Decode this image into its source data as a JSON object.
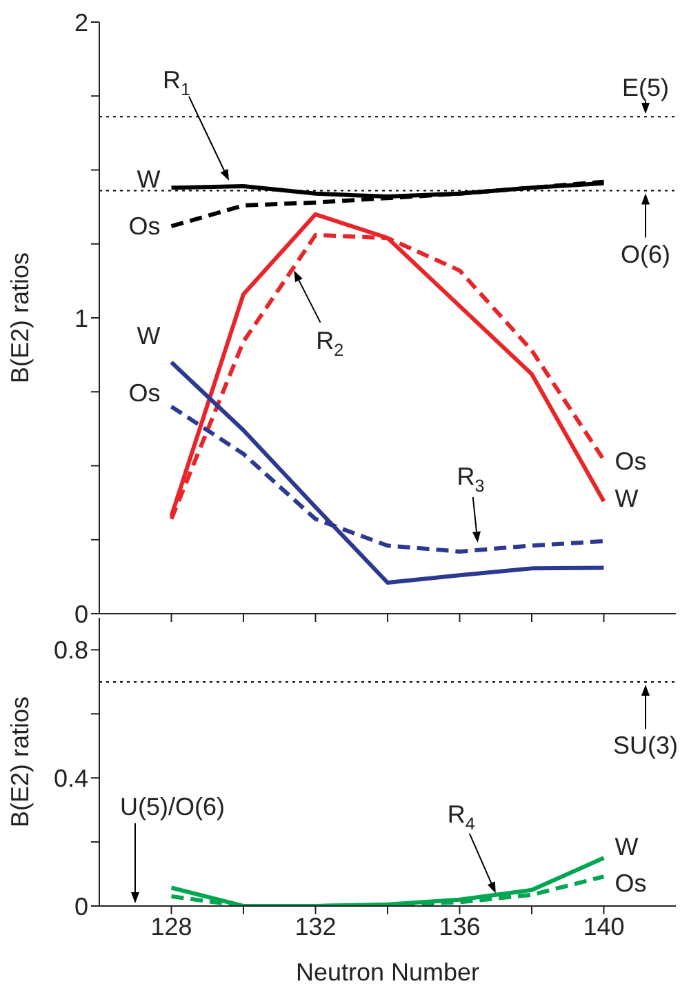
{
  "chart_data": [
    {
      "type": "line",
      "ylabel": "B(E2) ratios",
      "x": [
        128,
        130,
        132,
        134,
        136,
        138,
        140
      ],
      "xlim": [
        126,
        142
      ],
      "xticks": [
        128,
        130,
        132,
        134,
        136,
        138,
        140
      ],
      "ylim": [
        0,
        2
      ],
      "yticks": [
        0,
        {
          "value": 0.25,
          "label": null
        },
        {
          "value": 0.5,
          "label": null
        },
        {
          "value": 0.75,
          "label": null
        },
        1,
        {
          "value": 1.25,
          "label": null
        },
        {
          "value": 1.5,
          "label": null
        },
        {
          "value": 1.75,
          "label": null
        },
        2
      ],
      "tick_labels": "y",
      "series": [
        {
          "color": "#000000",
          "line_style": "solid",
          "values": [
            1.44,
            1.445,
            1.42,
            1.41,
            1.42,
            1.44,
            1.455
          ]
        },
        {
          "color": "#000000",
          "line_style": "dashed",
          "values": [
            1.31,
            1.38,
            1.39,
            1.405,
            1.42,
            1.44,
            1.46
          ]
        },
        {
          "color": "#e8262a",
          "line_style": "solid",
          "values": [
            0.33,
            1.08,
            1.35,
            1.27,
            1.04,
            0.81,
            0.38
          ]
        },
        {
          "color": "#e8262a",
          "line_style": "dashed",
          "values": [
            0.32,
            0.92,
            1.28,
            1.27,
            1.16,
            0.89,
            0.52
          ]
        },
        {
          "color": "#2b3990",
          "line_style": "solid",
          "values": [
            0.85,
            0.62,
            0.36,
            0.105,
            0.13,
            0.153,
            0.155
          ]
        },
        {
          "color": "#2b3990",
          "line_style": "dashed",
          "values": [
            0.7,
            0.54,
            0.32,
            0.23,
            0.21,
            0.23,
            0.245
          ]
        }
      ],
      "ref_lines": [
        {
          "axis": "y",
          "value": 1.68,
          "label": "E(5)",
          "color": "#000000",
          "line_style": "dotted"
        },
        {
          "axis": "y",
          "value": 1.43,
          "label": "O(6)",
          "color": "#000000",
          "line_style": "dotted"
        }
      ],
      "annotations": [
        {
          "text": "W",
          "x": 128,
          "y": 1.44
        },
        {
          "text": "Os",
          "x": 128,
          "y": 1.31
        },
        "R$_{1}$",
        {
          "text": "W",
          "x": 140,
          "y": 0.38
        },
        {
          "text": "Os",
          "x": 140,
          "y": 0.52
        },
        {
          "text": "R$_{2}$",
          "x": 131.4,
          "y": 1.16
        },
        {
          "text": "W",
          "x": 128,
          "y": 0.85
        },
        {
          "text": "Os",
          "x": 128,
          "y": 0.7
        },
        {
          "text": "R$_{3}$",
          "x": 136.5,
          "y": 0.24
        }
      ]
    },
    {
      "type": "line",
      "ylabel": "B(E2) ratios",
      "xlabel": "Neutron Number",
      "x": [
        128,
        130,
        132,
        134,
        136,
        138,
        140
      ],
      "xlim": [
        126,
        142
      ],
      "xticks": [
        128,
        {
          "value": 130,
          "label": null
        },
        132,
        {
          "value": 134,
          "label": null
        },
        136,
        {
          "value": 138,
          "label": null
        },
        140
      ],
      "ylim": [
        0,
        0.9
      ],
      "yticks": [
        0,
        {
          "value": 0.2,
          "label": null
        },
        0.4,
        {
          "value": 0.6,
          "label": null
        },
        0.8
      ],
      "series": [
        {
          "color": "#00a651",
          "line_style": "solid",
          "values": [
            0.057,
            0,
            0,
            0.005,
            0.02,
            0.05,
            0.15
          ]
        },
        {
          "color": "#00a651",
          "line_style": "dashed",
          "values": [
            0.03,
            0,
            0,
            0.003,
            0.012,
            0.035,
            0.092
          ]
        }
      ],
      "ref_lines": [
        {
          "axis": "y",
          "value": 0.7,
          "label": "SU(3)",
          "color": "#000000",
          "line_style": "dotted"
        }
      ],
      "annotations": [
        "U(5)/O(6)",
        {
          "text": "R$_{4}$",
          "x": 137,
          "y": 0.04
        },
        {
          "text": "W",
          "x": 140,
          "y": 0.15
        },
        {
          "text": "Os",
          "x": 140,
          "y": 0.092
        }
      ]
    }
  ]
}
